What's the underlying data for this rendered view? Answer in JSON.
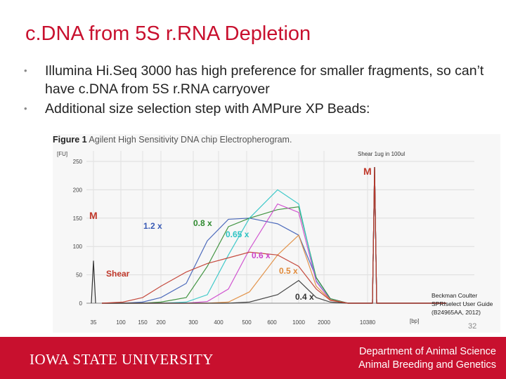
{
  "slide": {
    "title": "c.DNA from 5S r.RNA Depletion",
    "bullets": [
      "Illumina Hi.Seq 3000 has high preference for smaller fragments, so can’t have c.DNA from 5S r.RNA carryover",
      "Additional size selection step with AMPure XP Beads:"
    ],
    "page_number": "32"
  },
  "figure": {
    "caption_bold": "Figure 1",
    "caption_text": "Agilent High Sensitivity DNA chip Electropherogram.",
    "reference": [
      "Beckman Coulter",
      "SPRIselect User Guide",
      "(B24965AA, 2012)"
    ]
  },
  "footer": {
    "logo_text": "IOWA STATE UNIVERSITY",
    "dept_line1": "Department of Animal Science",
    "dept_line2": "Animal Breeding and Genetics"
  },
  "chart_data": {
    "type": "line",
    "title": "Agilent High Sensitivity DNA chip Electropherogram",
    "ylabel": "[FU]",
    "xlabel": "[bp]",
    "ylim": [
      0,
      250
    ],
    "yticks": [
      0,
      50,
      100,
      150,
      200,
      250
    ],
    "x_ticks": [
      "35",
      "100",
      "150",
      "200",
      "300",
      "400",
      "500",
      "600",
      "1000",
      "2000",
      "10380"
    ],
    "annotations": {
      "shear_note": "Shear 1ug in 100ul",
      "marker_left": "M",
      "marker_right": "M",
      "shear": "Shear"
    },
    "series": [
      {
        "name": "1.2 x",
        "color": "#3a5bb5",
        "values": [
          0,
          0,
          2,
          10,
          35,
          110,
          148,
          150,
          140,
          120,
          45,
          8,
          0
        ]
      },
      {
        "name": "0.8 x",
        "color": "#2f8a2f",
        "values": [
          0,
          0,
          0,
          2,
          10,
          65,
          135,
          150,
          165,
          170,
          45,
          8,
          0
        ]
      },
      {
        "name": "0.65 x",
        "color": "#2ec4c4",
        "values": [
          0,
          0,
          0,
          0,
          2,
          15,
          85,
          150,
          200,
          175,
          40,
          6,
          0
        ]
      },
      {
        "name": "0.6 x",
        "color": "#cc44cc",
        "values": [
          0,
          0,
          0,
          0,
          0,
          3,
          25,
          95,
          175,
          160,
          38,
          6,
          0
        ]
      },
      {
        "name": "0.5 x",
        "color": "#e08a3a",
        "values": [
          0,
          0,
          0,
          0,
          0,
          0,
          2,
          20,
          85,
          120,
          30,
          6,
          0
        ]
      },
      {
        "name": "0.4 x",
        "color": "#333333",
        "values": [
          0,
          0,
          0,
          0,
          0,
          0,
          0,
          2,
          15,
          40,
          10,
          2,
          0
        ]
      },
      {
        "name": "Shear",
        "color": "#c0392b",
        "values": [
          0,
          2,
          10,
          30,
          55,
          70,
          80,
          90,
          85,
          65,
          25,
          5,
          0
        ]
      }
    ]
  }
}
